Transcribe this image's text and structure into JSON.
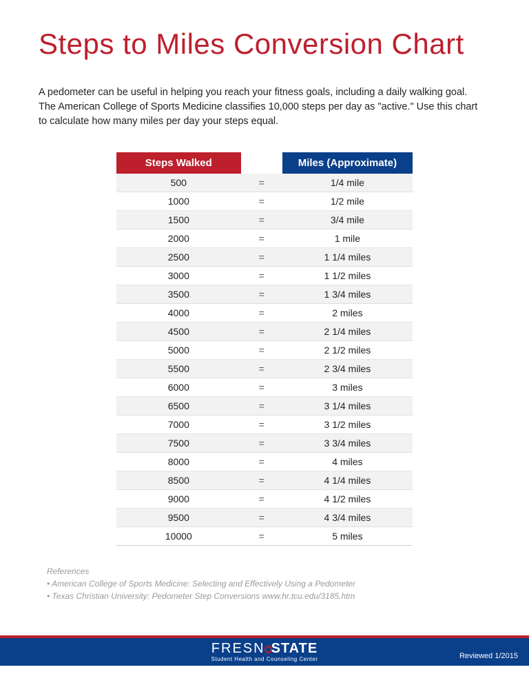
{
  "title": "Steps to Miles Conversion Chart",
  "intro": "A pedometer can be useful in helping you reach your fitness goals, including a daily walking goal. The American College of Sports Medicine classifies 10,000 steps per day as \"active.\" Use this chart to calculate how many miles per day your steps equal.",
  "table": {
    "header_steps": "Steps Walked",
    "header_miles": "Miles (Approximate)",
    "equals": "=",
    "header_colors": {
      "steps_bg": "#bd1f2d",
      "miles_bg": "#0a3f8a",
      "text": "#ffffff"
    },
    "row_colors": {
      "odd": "#f2f2f2",
      "even": "#ffffff"
    },
    "rows": [
      {
        "steps": "500",
        "miles": "1/4 mile"
      },
      {
        "steps": "1000",
        "miles": "1/2 mile"
      },
      {
        "steps": "1500",
        "miles": "3/4 mile"
      },
      {
        "steps": "2000",
        "miles": "1 mile"
      },
      {
        "steps": "2500",
        "miles": "1 1/4 miles"
      },
      {
        "steps": "3000",
        "miles": "1 1/2 miles"
      },
      {
        "steps": "3500",
        "miles": "1 3/4 miles"
      },
      {
        "steps": "4000",
        "miles": "2 miles"
      },
      {
        "steps": "4500",
        "miles": "2 1/4 miles"
      },
      {
        "steps": "5000",
        "miles": "2 1/2 miles"
      },
      {
        "steps": "5500",
        "miles": "2 3/4 miles"
      },
      {
        "steps": "6000",
        "miles": "3 miles"
      },
      {
        "steps": "6500",
        "miles": "3 1/4 miles"
      },
      {
        "steps": "7000",
        "miles": "3 1/2 miles"
      },
      {
        "steps": "7500",
        "miles": "3 3/4 miles"
      },
      {
        "steps": "8000",
        "miles": "4 miles"
      },
      {
        "steps": "8500",
        "miles": "4 1/4 miles"
      },
      {
        "steps": "9000",
        "miles": "4 1/2 miles"
      },
      {
        "steps": "9500",
        "miles": "4 3/4 miles"
      },
      {
        "steps": "10000",
        "miles": "5 miles"
      }
    ]
  },
  "references": {
    "title": "References",
    "items": [
      "• American College of Sports Medicine: Selecting and Effectively Using a Pedometer",
      "• Texas Christian University: Pedometer Step Conversions www.hr.tcu.edu/3185.htm"
    ]
  },
  "footer": {
    "brand_left": "FRESN",
    "brand_right": "STATE",
    "brand_sub": "Student Health and Counseling Center",
    "reviewed": "Reviewed  1/2015",
    "bg": "#0a3f8a",
    "accent": "#bd1f2d"
  },
  "colors": {
    "title": "#bd1f2d",
    "body_text": "#222222",
    "muted": "#9a9a9a",
    "page_bg": "#ffffff"
  }
}
